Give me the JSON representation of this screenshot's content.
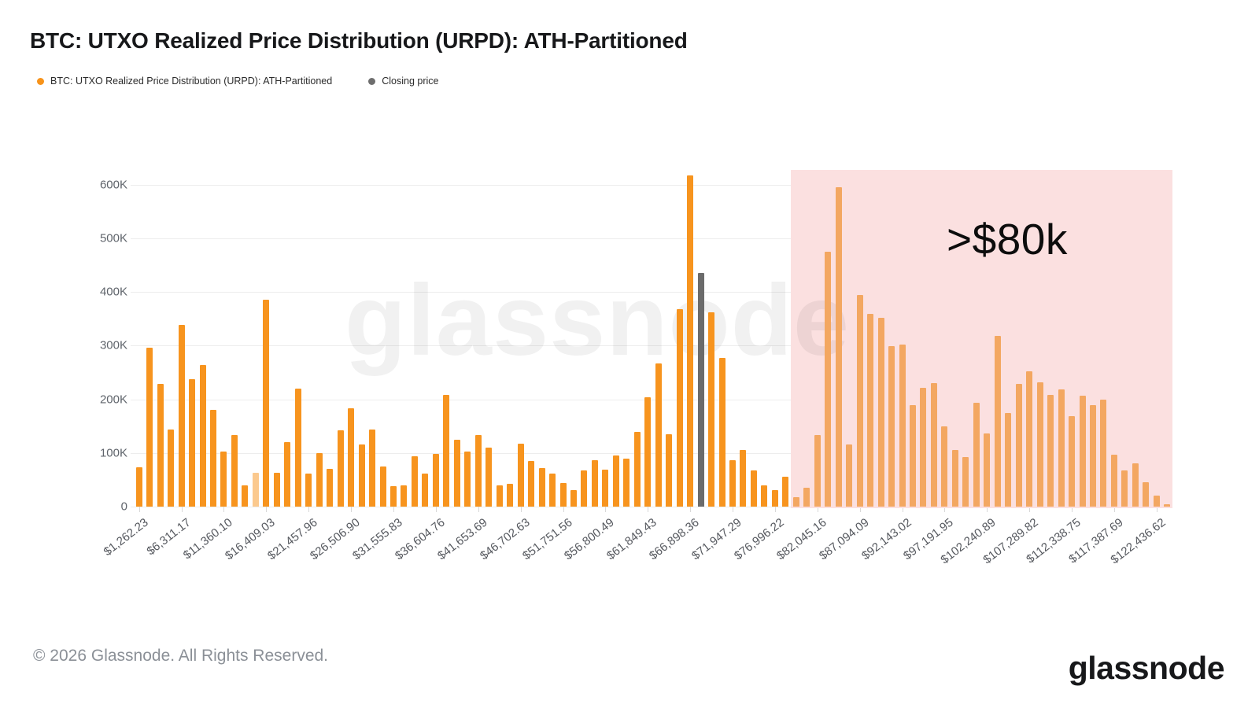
{
  "title": "BTC: UTXO Realized Price Distribution (URPD): ATH-Partitioned",
  "legend": {
    "series1_label": "BTC: UTXO Realized Price Distribution (URPD): ATH-Partitioned",
    "series1_color": "#f7931a",
    "series2_label": "Closing price",
    "series2_color": "#6e6e6e"
  },
  "watermark": "glassnode",
  "annotation_label": ">$80k",
  "footer": {
    "copyright": "© 2026 Glassnode. All Rights Reserved.",
    "logo_text": "glassnode"
  },
  "chart_data": {
    "type": "bar",
    "title": "BTC: UTXO Realized Price Distribution (URPD): ATH-Partitioned",
    "xlabel": "",
    "ylabel": "",
    "ylim": [
      0,
      640000
    ],
    "grid": true,
    "legend_position": "top-left",
    "y_tick_labels": [
      "0",
      "100K",
      "200K",
      "300K",
      "400K",
      "500K",
      "600K"
    ],
    "x_tick_labels": [
      "$1,262.23",
      "$6,311.17",
      "$11,360.10",
      "$16,409.03",
      "$21,457.96",
      "$26,506.90",
      "$31,555.83",
      "$36,604.76",
      "$41,653.69",
      "$46,702.63",
      "$51,751.56",
      "$56,800.49",
      "$61,849.43",
      "$66,898.36",
      "$71,947.29",
      "$76,996.22",
      "$82,045.16",
      "$87,094.09",
      "$92,143.02",
      "$97,191.95",
      "$102,240.89",
      "$107,289.82",
      "$112,338.75",
      "$117,387.69",
      "$122,436.62"
    ],
    "x_ticks_every_n_bars": 4,
    "series_name": "BTC: UTXO Realized Price Distribution (URPD): ATH-Partitioned",
    "values": [
      73000,
      296000,
      229000,
      144000,
      339000,
      238000,
      264000,
      181000,
      103000,
      133000,
      40000,
      63000,
      386000,
      63000,
      120000,
      220000,
      62000,
      99000,
      71000,
      142000,
      184000,
      116000,
      143000,
      75000,
      38000,
      39000,
      94000,
      61000,
      98000,
      208000,
      125000,
      103000,
      133000,
      110000,
      40000,
      43000,
      117000,
      85000,
      72000,
      62000,
      44000,
      31000,
      67000,
      86000,
      69000,
      96000,
      89000,
      139000,
      204000,
      267000,
      135000,
      368000,
      617000,
      436000,
      362000,
      277000,
      86000,
      106000,
      68000,
      39000,
      31000,
      56000,
      17000,
      35000,
      133000,
      475000,
      596000,
      116000,
      395000,
      359000,
      352000,
      299000,
      302000,
      189000,
      222000,
      230000,
      149000,
      105000,
      93000,
      193000,
      137000,
      318000,
      174000,
      229000,
      252000,
      232000,
      208000,
      218000,
      169000,
      207000,
      189000,
      199000,
      97000,
      68000,
      80000,
      45000,
      20000,
      5000
    ],
    "closing_price_bar": {
      "index": 53,
      "value": 436000,
      "color": "#6b6b6b",
      "label": "Closing price"
    },
    "faded_bar_indices": [
      11
    ],
    "bar_color": "#f7941e",
    "bar_color_inside_region": "#f3a761",
    "highlight_region": {
      "label": ">$80k",
      "start_bar_index": 62,
      "color": "#fbe0e0"
    }
  }
}
